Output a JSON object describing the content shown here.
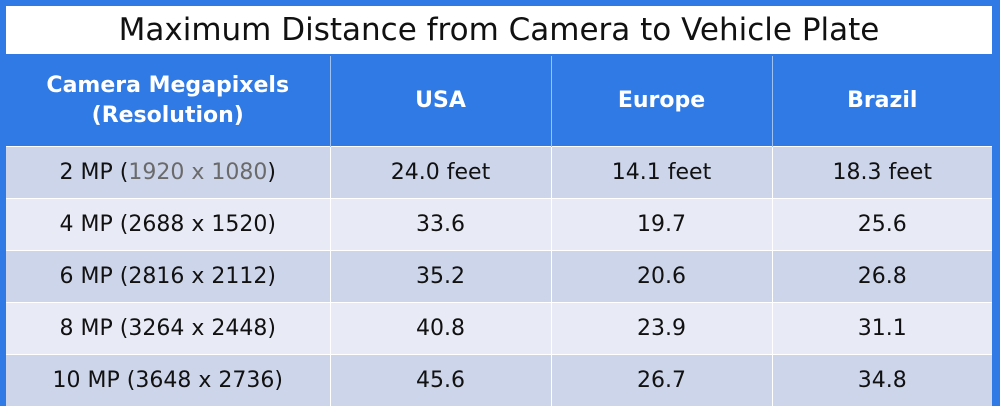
{
  "title": "Maximum Distance from Camera to Vehicle Plate",
  "header": {
    "col0_line1": "Camera Megapixels",
    "col0_line2": "(Resolution)",
    "col1": "USA",
    "col2": "Europe",
    "col3": "Brazil"
  },
  "rows": [
    {
      "mp": "2 MP (",
      "res": "1920 x 1080",
      "close": ")",
      "usa": "24.0 feet",
      "europe": "14.1 feet",
      "brazil": "18.3 feet"
    },
    {
      "mp": "4 MP (",
      "res": "2688 x 1520",
      "close": ")",
      "usa": "33.6",
      "europe": "19.7",
      "brazil": "25.6"
    },
    {
      "mp": "6 MP (",
      "res": "2816 x 2112",
      "close": ")",
      "usa": "35.2",
      "europe": "20.6",
      "brazil": "26.8"
    },
    {
      "mp": "8 MP (",
      "res": "3264 x 2448",
      "close": ")",
      "usa": "40.8",
      "europe": "23.9",
      "brazil": "31.1"
    },
    {
      "mp": "10 MP (",
      "res": "3648 x 2736",
      "close": ")",
      "usa": "45.6",
      "europe": "26.7",
      "brazil": "34.8"
    }
  ],
  "colors": {
    "header_bg": "#2f7ae5",
    "row_odd": "#cdd5ea",
    "row_even": "#e8ebf5"
  }
}
